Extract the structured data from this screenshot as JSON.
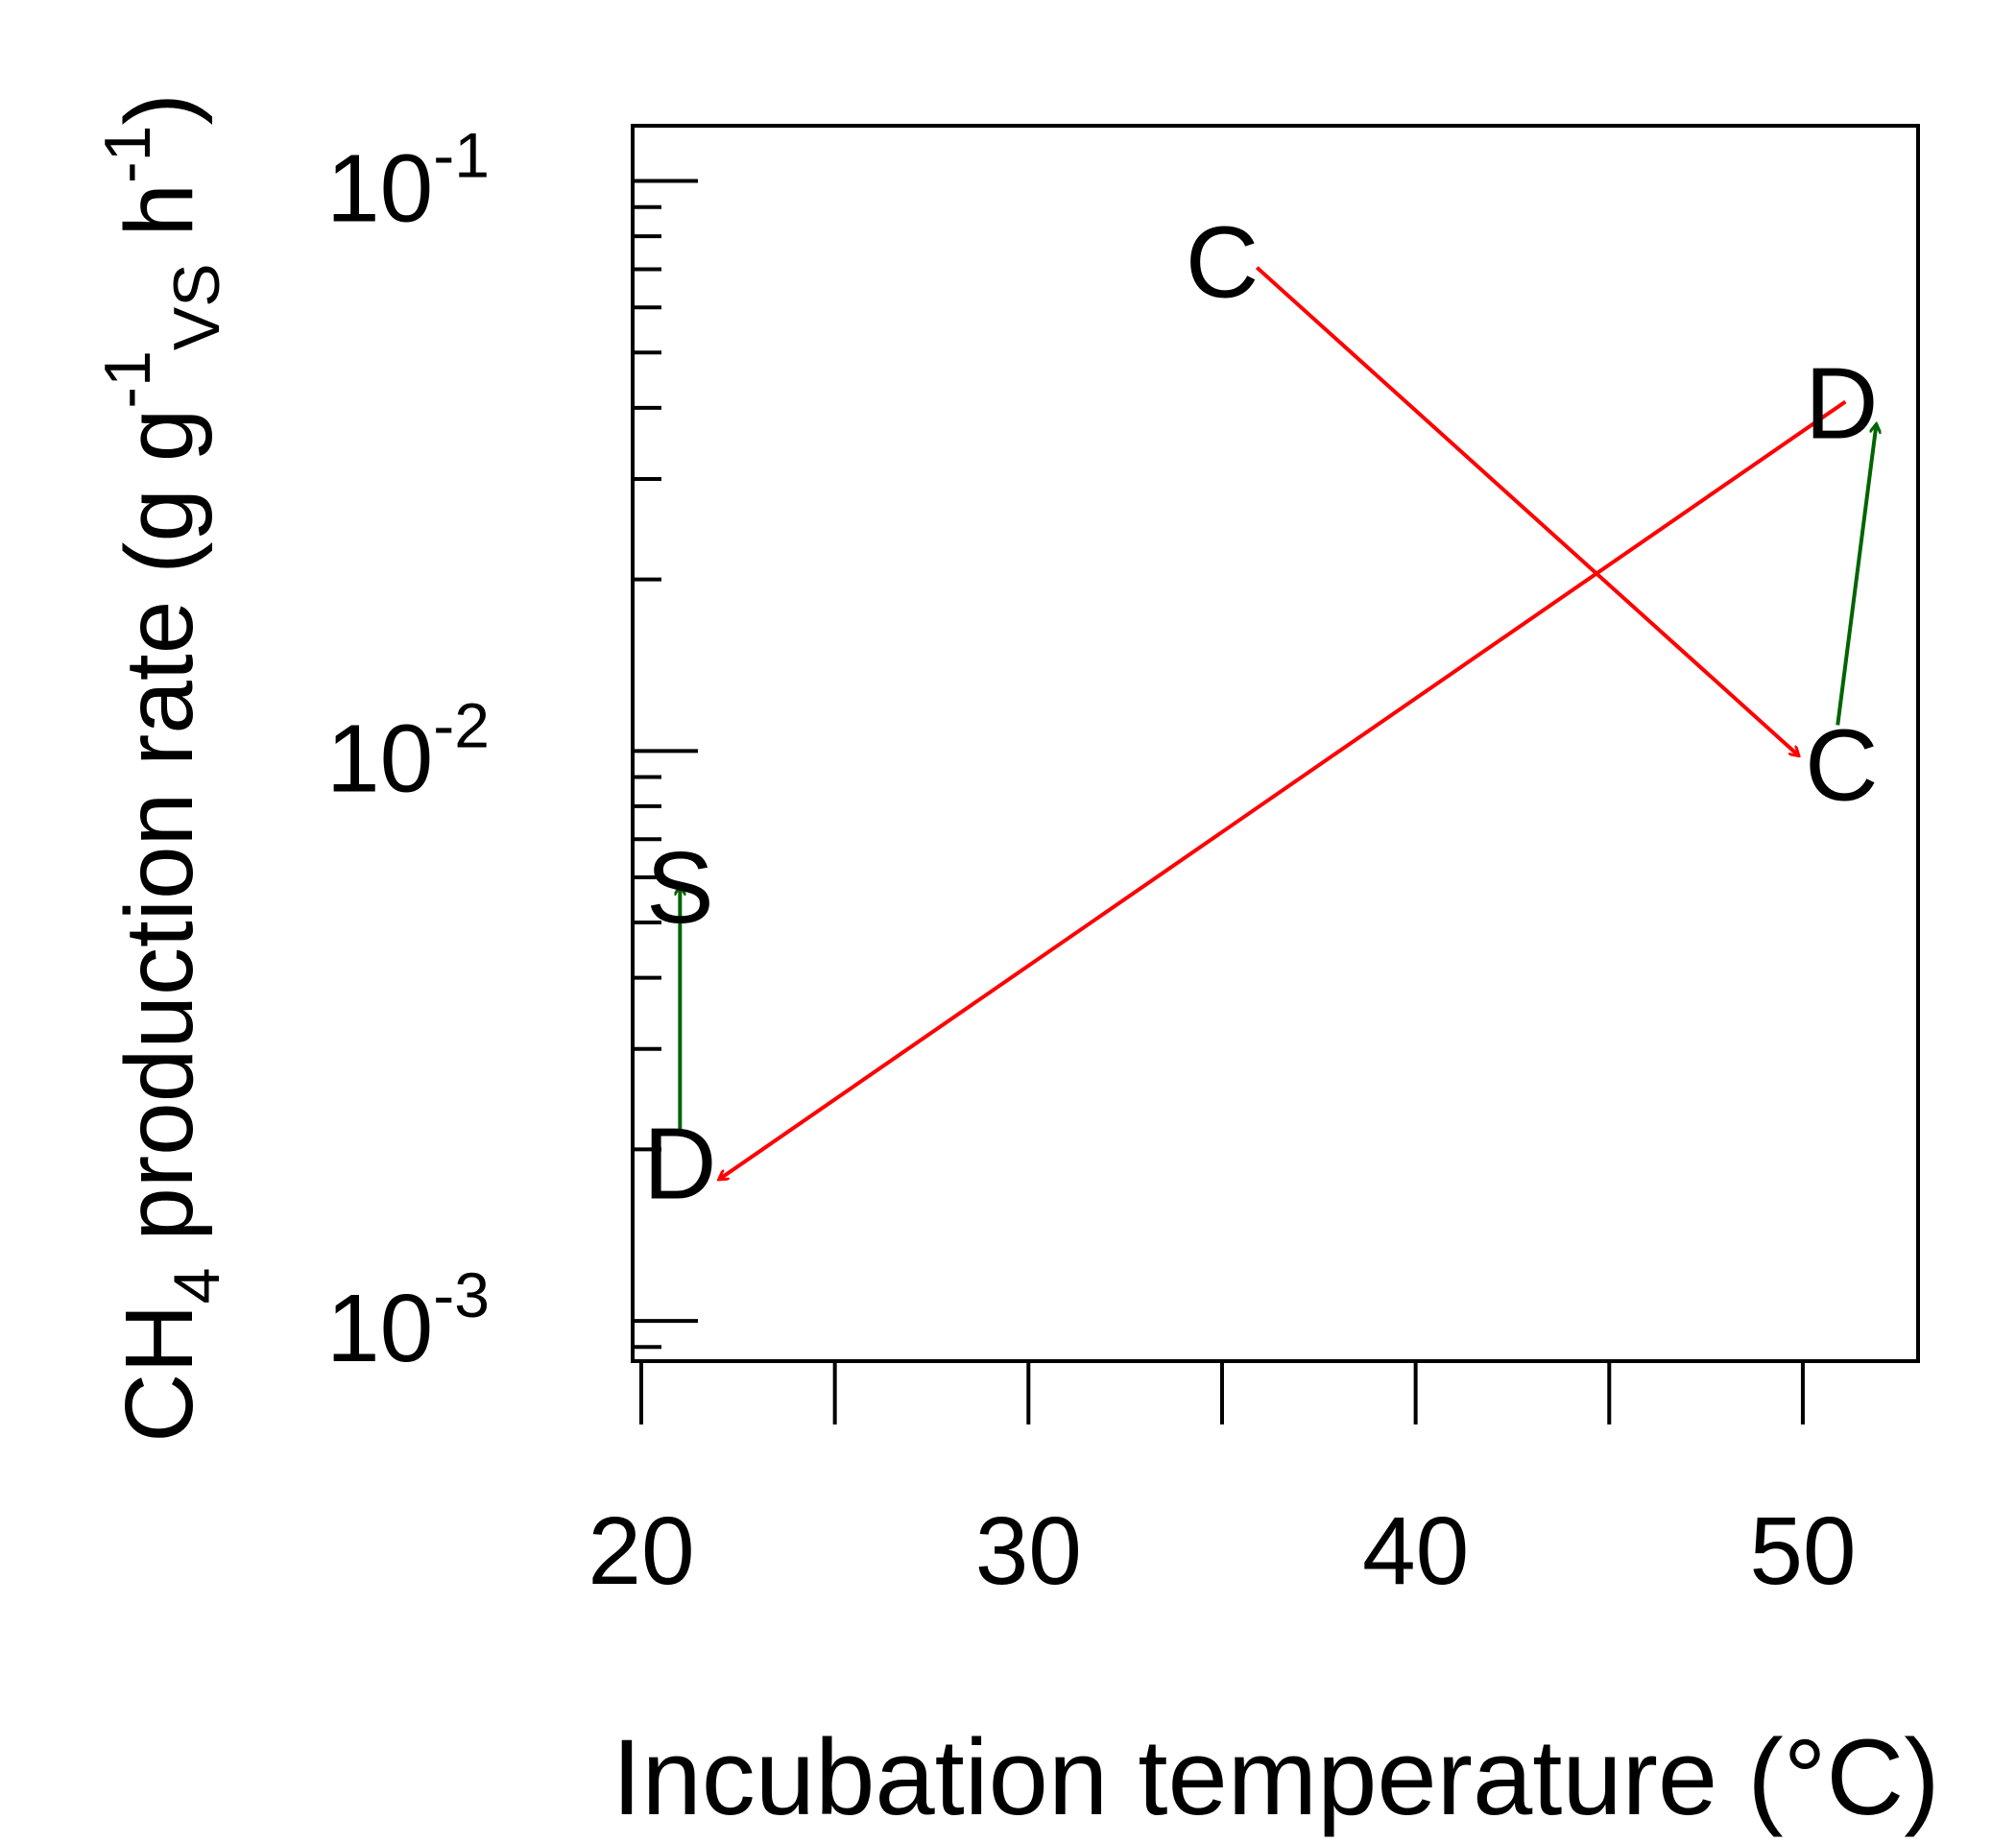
{
  "chart_data": {
    "type": "scatter",
    "title": "",
    "xlabel": "Incubation temperature (°C)",
    "ylabel": {
      "main": "CH",
      "sub1": "4",
      "rest1": " production rate (g g",
      "sup1": "-1",
      "sub2": "VS",
      "rest2": " h",
      "sup2": "-1",
      "close": ")"
    },
    "xlim": [
      20,
      53.2
    ],
    "ylim": [
      0.00085,
      0.125
    ],
    "y_scale": "log",
    "x_ticks": [
      {
        "value": 20,
        "label": "20"
      },
      {
        "value": 25,
        "label": ""
      },
      {
        "value": 30,
        "label": "30"
      },
      {
        "value": 35,
        "label": ""
      },
      {
        "value": 40,
        "label": "40"
      },
      {
        "value": 45,
        "label": ""
      },
      {
        "value": 50,
        "label": "50"
      }
    ],
    "y_major_ticks": [
      {
        "value": 0.001,
        "base": "10",
        "exp": "-3"
      },
      {
        "value": 0.01,
        "base": "10",
        "exp": "-2"
      },
      {
        "value": 0.1,
        "base": "10",
        "exp": "-1"
      }
    ],
    "y_minor_ticks": [
      0.0009,
      0.002,
      0.003,
      0.004,
      0.005,
      0.006,
      0.007,
      0.008,
      0.009,
      0.02,
      0.03,
      0.04,
      0.05,
      0.06,
      0.07,
      0.08,
      0.09
    ],
    "points": [
      {
        "label": "C",
        "x": 35,
        "y": 0.0725
      },
      {
        "label": "D",
        "x": 51,
        "y": 0.041
      },
      {
        "label": "C",
        "x": 51,
        "y": 0.0095
      },
      {
        "label": "S",
        "x": 21,
        "y": 0.0058
      },
      {
        "label": "D",
        "x": 21,
        "y": 0.0019
      }
    ],
    "arrows": [
      {
        "from": [
          35.9,
          0.0705
        ],
        "to": [
          49.9,
          0.0098
        ],
        "color": "#ff0000"
      },
      {
        "from": [
          51.1,
          0.041
        ],
        "to": [
          22.0,
          0.00177
        ],
        "color": "#ff0000"
      },
      {
        "from": [
          21.0,
          0.00215
        ],
        "to": [
          21.0,
          0.0058
        ],
        "color": "#006400"
      },
      {
        "from": [
          50.9,
          0.0111
        ],
        "to": [
          51.9,
          0.0375
        ],
        "color": "#006400"
      }
    ],
    "grid": false,
    "legend": "none"
  }
}
